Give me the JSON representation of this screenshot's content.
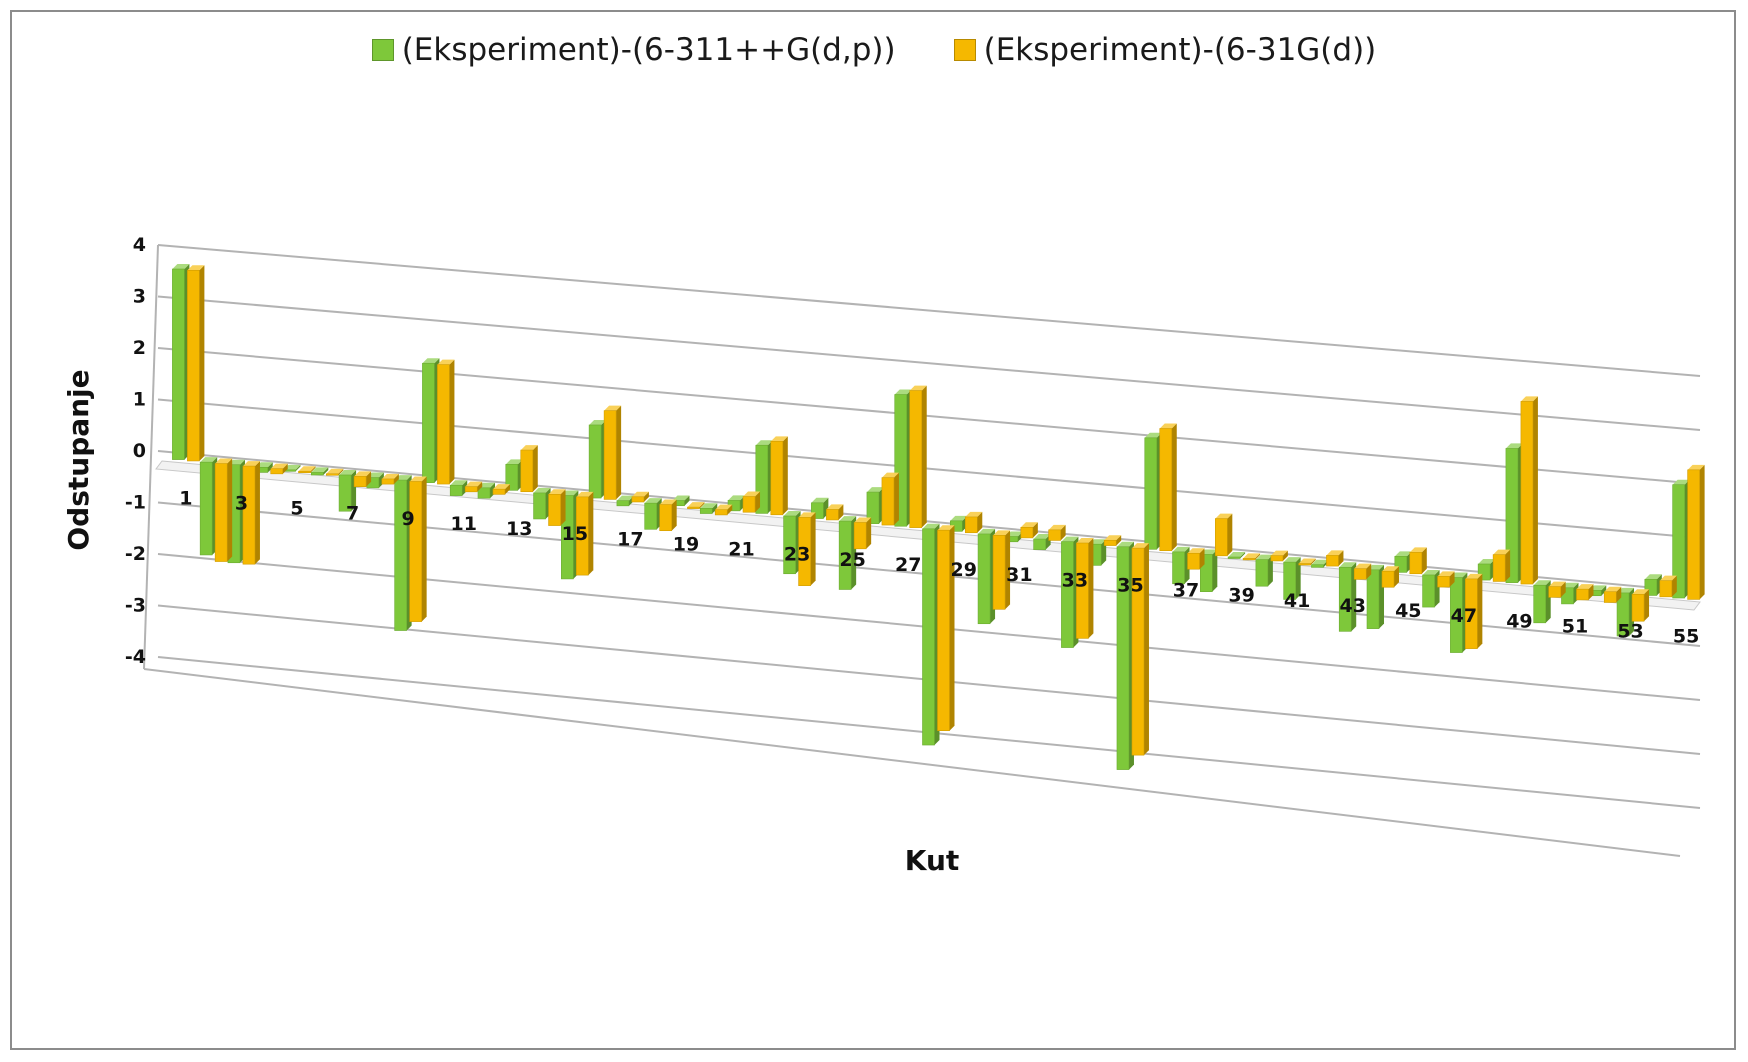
{
  "chart_data": {
    "type": "bar",
    "subtype": "3d-clustered-column",
    "xlabel": "Kut",
    "ylabel": "Odstupanje",
    "ylim": [
      -4,
      4
    ],
    "y_ticks": [
      4,
      3,
      2,
      1,
      0,
      -1,
      -2,
      -3,
      -4
    ],
    "categories": [
      1,
      2,
      3,
      4,
      5,
      6,
      7,
      8,
      9,
      10,
      11,
      12,
      13,
      14,
      15,
      16,
      17,
      18,
      19,
      20,
      21,
      22,
      23,
      24,
      25,
      26,
      27,
      28,
      29,
      30,
      31,
      32,
      33,
      34,
      35,
      36,
      37,
      38,
      39,
      40,
      41,
      42,
      43,
      44,
      45,
      46,
      47,
      48,
      49,
      50,
      51,
      52,
      53,
      54,
      55
    ],
    "x_tick_labels": [
      "1",
      "3",
      "5",
      "7",
      "9",
      "11",
      "13",
      "15",
      "17",
      "19",
      "21",
      "23",
      "25",
      "27",
      "29",
      "31",
      "33",
      "35",
      "37",
      "39",
      "41",
      "43",
      "45",
      "47",
      "49",
      "51",
      "53",
      "55"
    ],
    "grid": true,
    "legend_position": "top",
    "series": [
      {
        "name": "(Eksperiment)-(6-311++G(d,p))",
        "color": "#7ec83a",
        "values": [
          3.7,
          -1.8,
          -1.9,
          -0.1,
          0.0,
          -0.05,
          -0.7,
          -0.2,
          -2.9,
          2.3,
          -0.2,
          -0.2,
          0.5,
          -0.5,
          -1.6,
          1.4,
          -0.1,
          -0.5,
          0.1,
          -0.1,
          0.2,
          1.3,
          -1.1,
          0.3,
          -1.3,
          0.6,
          2.5,
          -4.1,
          0.2,
          -1.7,
          -0.1,
          -0.2,
          -2.0,
          -0.4,
          -4.2,
          2.1,
          -0.6,
          -0.7,
          0.0,
          -0.5,
          -0.7,
          -0.05,
          -1.2,
          -1.1,
          0.3,
          -0.6,
          -1.4,
          0.3,
          2.5,
          -0.7,
          -0.3,
          -0.1,
          -0.8,
          0.3,
          2.1
        ]
      },
      {
        "name": "(Eksperiment)-(6-31G(d))",
        "color": "#f5b800",
        "values": [
          3.7,
          -1.9,
          -1.9,
          -0.1,
          0.0,
          0.0,
          -0.2,
          -0.1,
          -2.7,
          2.3,
          -0.1,
          -0.1,
          0.8,
          -0.6,
          -1.5,
          1.7,
          0.1,
          -0.5,
          0.0,
          -0.1,
          0.3,
          1.4,
          -1.3,
          0.2,
          -0.5,
          0.9,
          2.6,
          -3.8,
          0.3,
          -1.4,
          0.2,
          0.2,
          -1.8,
          0.1,
          -3.9,
          2.3,
          -0.3,
          0.7,
          0.0,
          0.1,
          0.0,
          0.2,
          -0.2,
          -0.3,
          0.4,
          -0.2,
          -1.3,
          0.5,
          3.4,
          -0.2,
          -0.2,
          -0.2,
          -0.5,
          0.3,
          2.4
        ]
      }
    ]
  }
}
